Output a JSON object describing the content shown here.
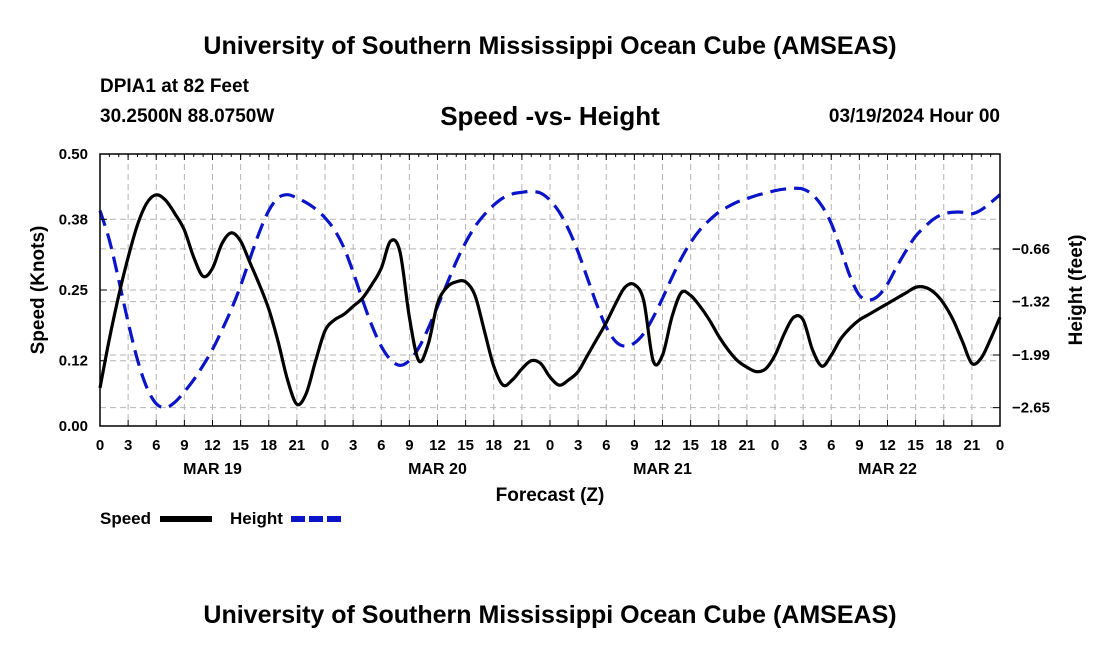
{
  "header": {
    "title": "University of Southern Mississippi Ocean Cube (AMSEAS)",
    "station": "DPIA1 at 82 Feet",
    "coordinates": "30.2500N  88.0750W",
    "chart_title": "Speed -vs- Height",
    "datetime": "03/19/2024 Hour 00"
  },
  "footer": {
    "title": "University of Southern Mississippi Ocean Cube (AMSEAS)"
  },
  "colors": {
    "speed": "#000000",
    "height": "#0a14c8",
    "grid": "#b4b4b4"
  },
  "chart_data": {
    "type": "line",
    "title": "Speed -vs- Height",
    "xlabel": "Forecast (Z)",
    "ylabel": "Speed (Knots)",
    "y2label": "Height (feet)",
    "xlim": [
      0,
      96
    ],
    "ylim": [
      0,
      0.5
    ],
    "y2lim": [
      -2.88,
      0.53
    ],
    "x_ticks": [
      0,
      3,
      6,
      9,
      12,
      15,
      18,
      21,
      24,
      27,
      30,
      33,
      36,
      39,
      42,
      45,
      48,
      51,
      54,
      57,
      60,
      63,
      66,
      69,
      72,
      75,
      78,
      81,
      84,
      87,
      90,
      93,
      96
    ],
    "x_tick_labels": [
      "0",
      "3",
      "6",
      "9",
      "12",
      "15",
      "18",
      "21",
      "0",
      "3",
      "6",
      "9",
      "12",
      "15",
      "18",
      "21",
      "0",
      "3",
      "6",
      "9",
      "12",
      "15",
      "18",
      "21",
      "0",
      "3",
      "6",
      "9",
      "12",
      "15",
      "18",
      "21",
      "0"
    ],
    "day_labels": [
      {
        "x": 12,
        "label": "MAR 19"
      },
      {
        "x": 36,
        "label": "MAR 20"
      },
      {
        "x": 60,
        "label": "MAR 21"
      },
      {
        "x": 84,
        "label": "MAR 22"
      }
    ],
    "y_ticks": [
      0.0,
      0.12,
      0.25,
      0.38,
      0.5
    ],
    "y_tick_labels": [
      "0.00",
      "0.12",
      "0.25",
      "0.38",
      "0.50"
    ],
    "y2_ticks": [
      -2.65,
      -1.99,
      -1.32,
      -0.66
    ],
    "y2_tick_labels": [
      "−2.65",
      "−1.99",
      "−1.32",
      "−0.66"
    ],
    "grid": true,
    "series": [
      {
        "name": "Speed",
        "axis": "left",
        "style": "solid",
        "x": [
          0,
          1,
          2,
          3,
          4,
          5,
          6,
          7,
          8,
          9,
          10,
          11,
          12,
          13,
          14,
          15,
          16,
          17,
          18,
          19,
          20,
          21,
          22,
          23,
          24,
          25,
          26,
          27,
          28,
          29,
          30,
          31,
          32,
          33,
          34,
          35,
          36,
          37,
          38,
          39,
          40,
          41,
          42,
          43,
          44,
          45,
          46,
          47,
          48,
          49,
          50,
          51,
          52,
          53,
          54,
          55,
          56,
          57,
          58,
          59,
          60,
          61,
          62,
          63,
          64,
          65,
          66,
          67,
          68,
          69,
          70,
          71,
          72,
          73,
          74,
          75,
          76,
          77,
          78,
          79,
          80,
          81,
          82,
          83,
          84,
          85,
          86,
          87,
          88,
          89,
          90,
          91,
          92,
          93,
          94,
          95,
          96
        ],
        "values": [
          0.07,
          0.16,
          0.24,
          0.31,
          0.37,
          0.41,
          0.425,
          0.415,
          0.39,
          0.36,
          0.31,
          0.275,
          0.29,
          0.335,
          0.355,
          0.34,
          0.3,
          0.26,
          0.215,
          0.155,
          0.085,
          0.04,
          0.06,
          0.12,
          0.175,
          0.195,
          0.205,
          0.22,
          0.235,
          0.26,
          0.29,
          0.34,
          0.32,
          0.2,
          0.12,
          0.15,
          0.225,
          0.255,
          0.265,
          0.265,
          0.24,
          0.175,
          0.11,
          0.075,
          0.085,
          0.105,
          0.12,
          0.115,
          0.09,
          0.075,
          0.085,
          0.1,
          0.13,
          0.16,
          0.19,
          0.225,
          0.255,
          0.26,
          0.23,
          0.12,
          0.13,
          0.2,
          0.245,
          0.24,
          0.22,
          0.195,
          0.165,
          0.14,
          0.12,
          0.108,
          0.1,
          0.105,
          0.13,
          0.17,
          0.2,
          0.195,
          0.14,
          0.11,
          0.13,
          0.16,
          0.18,
          0.195,
          0.205,
          0.215,
          0.225,
          0.235,
          0.245,
          0.255,
          0.255,
          0.245,
          0.225,
          0.195,
          0.155,
          0.115,
          0.125,
          0.16,
          0.2
        ]
      },
      {
        "name": "Height",
        "axis": "right",
        "style": "dashed",
        "x": [
          0,
          1,
          2,
          3,
          4,
          5,
          6,
          7,
          8,
          9,
          10,
          11,
          12,
          13,
          14,
          15,
          16,
          17,
          18,
          19,
          20,
          21,
          22,
          23,
          24,
          25,
          26,
          27,
          28,
          29,
          30,
          31,
          32,
          33,
          34,
          35,
          36,
          37,
          38,
          39,
          40,
          41,
          42,
          43,
          44,
          45,
          46,
          47,
          48,
          49,
          50,
          51,
          52,
          53,
          54,
          55,
          56,
          57,
          58,
          59,
          60,
          61,
          62,
          63,
          64,
          65,
          66,
          67,
          68,
          69,
          70,
          71,
          72,
          73,
          74,
          75,
          76,
          77,
          78,
          79,
          80,
          81,
          82,
          83,
          84,
          85,
          86,
          87,
          88,
          89,
          90,
          91,
          92,
          93,
          94,
          95,
          96
        ],
        "values": [
          -0.18,
          -0.55,
          -1.05,
          -1.58,
          -2.05,
          -2.4,
          -2.6,
          -2.65,
          -2.58,
          -2.45,
          -2.3,
          -2.12,
          -1.92,
          -1.68,
          -1.42,
          -1.12,
          -0.78,
          -0.45,
          -0.18,
          -0.02,
          0.02,
          -0.02,
          -0.08,
          -0.16,
          -0.27,
          -0.42,
          -0.64,
          -0.95,
          -1.3,
          -1.62,
          -1.88,
          -2.05,
          -2.12,
          -2.06,
          -1.9,
          -1.66,
          -1.38,
          -1.1,
          -0.82,
          -0.58,
          -0.38,
          -0.23,
          -0.11,
          -0.02,
          0.03,
          0.05,
          0.06,
          0.04,
          -0.05,
          -0.2,
          -0.42,
          -0.7,
          -1.03,
          -1.36,
          -1.64,
          -1.82,
          -1.88,
          -1.84,
          -1.72,
          -1.52,
          -1.28,
          -1.02,
          -0.78,
          -0.58,
          -0.42,
          -0.3,
          -0.2,
          -0.13,
          -0.07,
          -0.03,
          0.01,
          0.04,
          0.07,
          0.09,
          0.1,
          0.09,
          0.02,
          -0.12,
          -0.34,
          -0.66,
          -1.0,
          -1.24,
          -1.3,
          -1.25,
          -1.1,
          -0.88,
          -0.68,
          -0.5,
          -0.38,
          -0.28,
          -0.22,
          -0.2,
          -0.2,
          -0.22,
          -0.17,
          -0.08,
          0.02
        ]
      }
    ],
    "legend": [
      {
        "label": "Speed",
        "style": "solid"
      },
      {
        "label": "Height",
        "style": "dashed"
      }
    ],
    "legend_position": "bottom-left"
  }
}
